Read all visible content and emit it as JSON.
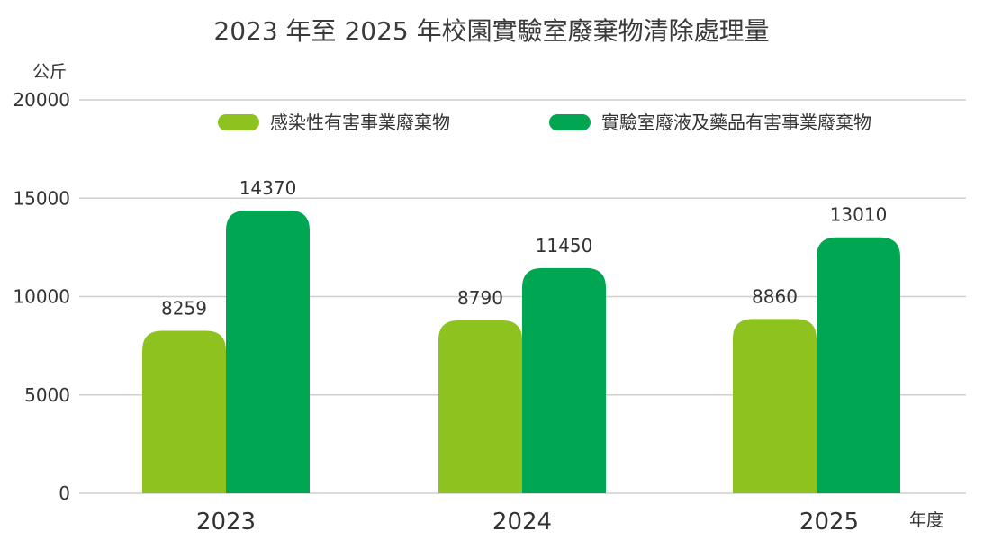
{
  "chart_data": {
    "type": "bar",
    "title": "2023 年至 2025 年校園實驗室廢棄物清除處理量",
    "ylabel": "公斤",
    "xlabel": "年度",
    "categories": [
      "2023",
      "2024",
      "2025"
    ],
    "series": [
      {
        "name": "感染性有害事業廢棄物",
        "color": "#8dc21f",
        "values": [
          8259,
          8790,
          8860
        ]
      },
      {
        "name": "實驗室廢液及藥品有害事業廢棄物",
        "color": "#00a651",
        "values": [
          14370,
          11450,
          13010
        ]
      }
    ],
    "ylim": [
      0,
      20000
    ],
    "yticks": [
      0,
      5000,
      10000,
      15000,
      20000
    ],
    "grid": true,
    "legend_position": "top"
  }
}
